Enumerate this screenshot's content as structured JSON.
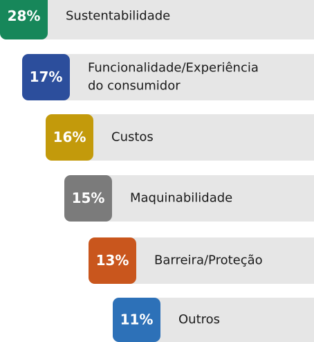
{
  "items": [
    {
      "percent": "28%",
      "label_lines": [
        "Sustentabilidade"
      ],
      "color": "#17875a"
    },
    {
      "percent": "17%",
      "label_lines": [
        "Funcionalidade/Experiência",
        "do consumidor"
      ],
      "color": "#2c4e9c"
    },
    {
      "percent": "16%",
      "label_lines": [
        "Custos"
      ],
      "color": "#c39a0b"
    },
    {
      "percent": "15%",
      "label_lines": [
        "Maquinabilidade"
      ],
      "color": "#7b7b7b"
    },
    {
      "percent": "13%",
      "label_lines": [
        "Barreira/Proteção"
      ],
      "color": "#c9561d"
    },
    {
      "percent": "11%",
      "label_lines": [
        "Outros"
      ],
      "color": "#2d71b8"
    }
  ]
}
